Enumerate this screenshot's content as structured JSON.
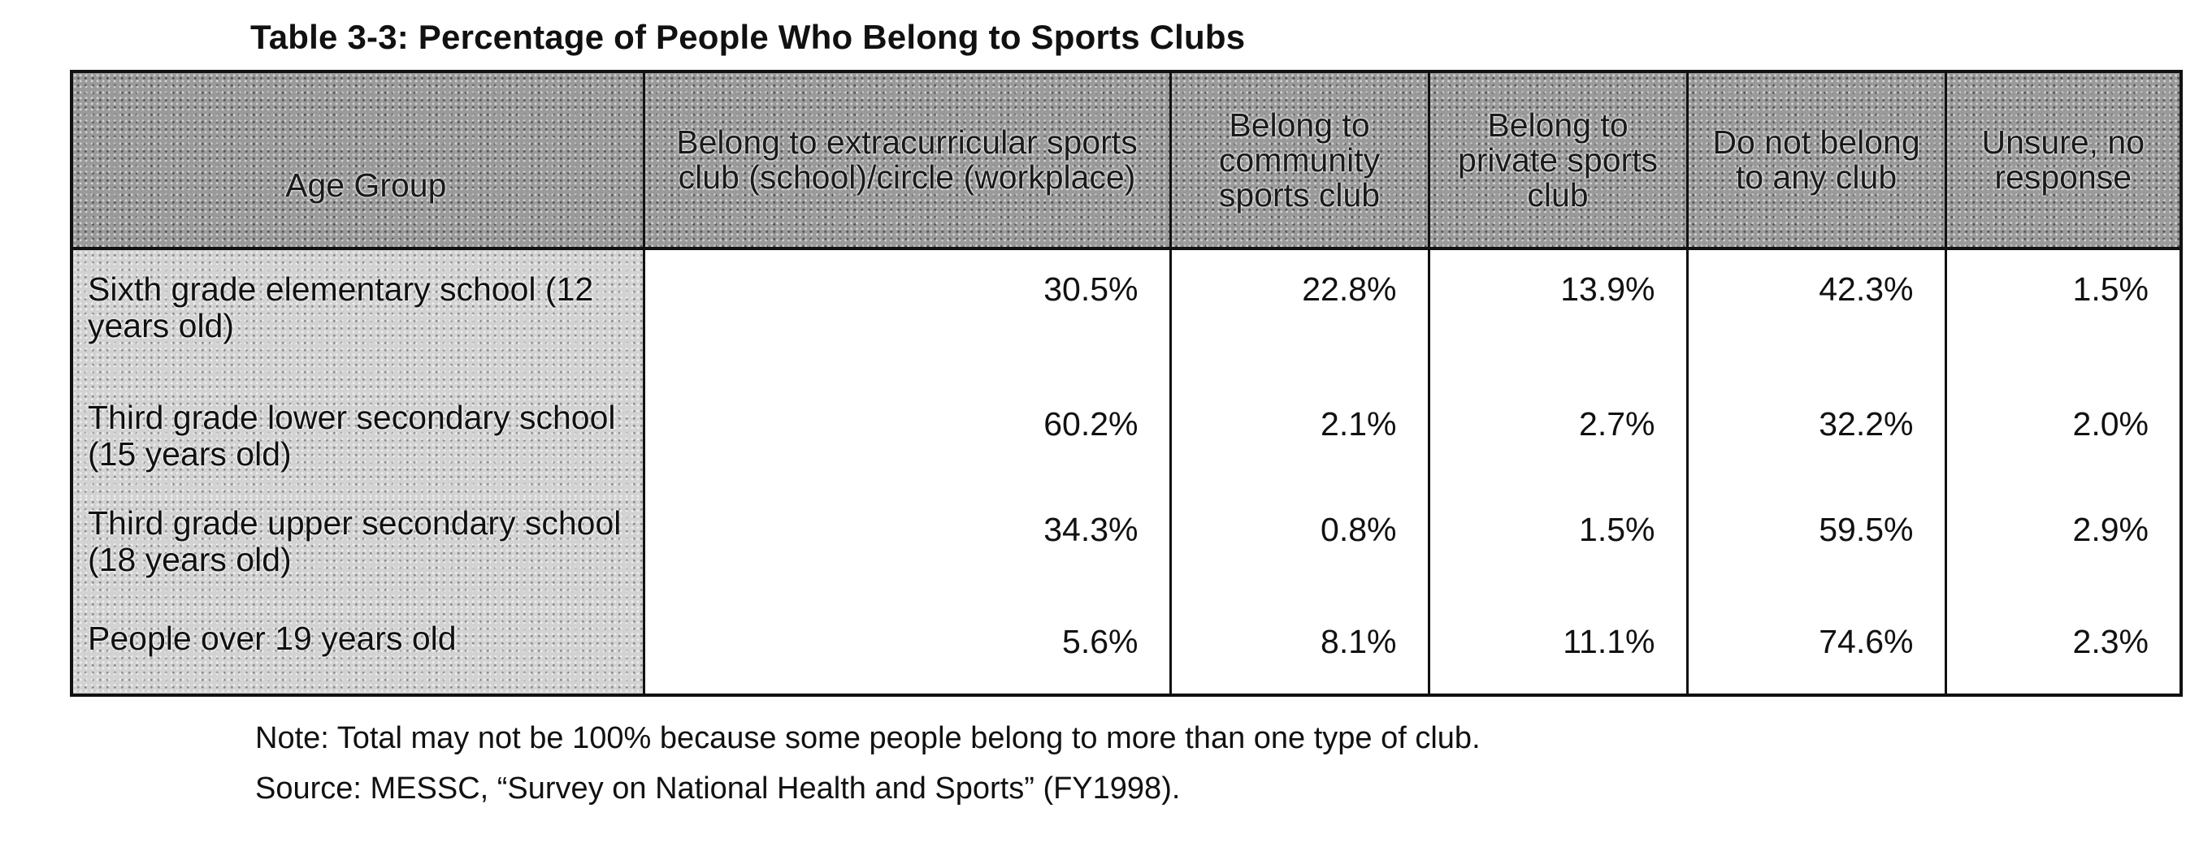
{
  "title": "Table 3-3: Percentage of People Who Belong to Sports Clubs",
  "table": {
    "headers": [
      "Age Group",
      "Belong to extracurricular sports club (school)/circle (workplace)",
      "Belong to community sports club",
      "Belong to private sports club",
      "Do not belong to any club",
      "Unsure, no response"
    ],
    "rows": [
      {
        "label": "Sixth grade elementary school (12 years old)",
        "values": [
          "30.5%",
          "22.8%",
          "13.9%",
          "42.3%",
          "1.5%"
        ]
      },
      {
        "label": "Third grade lower secondary school (15 years old)",
        "values": [
          "60.2%",
          "2.1%",
          "2.7%",
          "32.2%",
          "2.0%"
        ]
      },
      {
        "label": "Third grade upper secondary school (18 years old)",
        "values": [
          "34.3%",
          "0.8%",
          "1.5%",
          "59.5%",
          "2.9%"
        ]
      },
      {
        "label": "People over 19 years old",
        "values": [
          "5.6%",
          "8.1%",
          "11.1%",
          "74.6%",
          "2.3%"
        ]
      }
    ]
  },
  "note": "Note: Total may not be 100% because some people belong to more than one type of club.",
  "source": "Source: MESSC, “Survey on National Health and Sports” (FY1998).",
  "colors": {
    "header_shading": "#9a9a9a",
    "label_shading": "#d2d2d2",
    "border": "#111111"
  }
}
